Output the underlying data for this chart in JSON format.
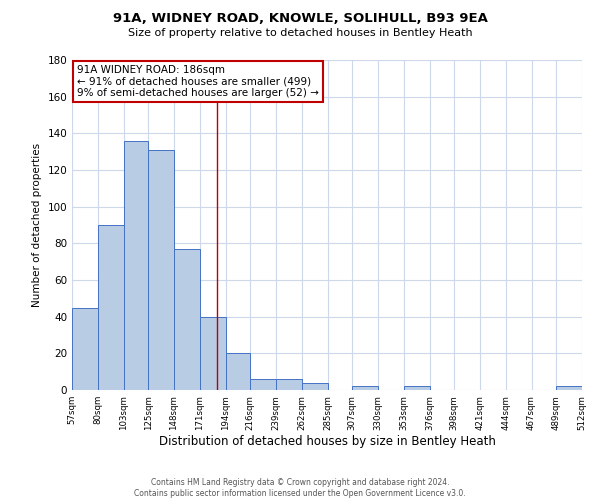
{
  "title": "91A, WIDNEY ROAD, KNOWLE, SOLIHULL, B93 9EA",
  "subtitle": "Size of property relative to detached houses in Bentley Heath",
  "xlabel": "Distribution of detached houses by size in Bentley Heath",
  "ylabel": "Number of detached properties",
  "bar_edges": [
    57,
    80,
    103,
    125,
    148,
    171,
    194,
    216,
    239,
    262,
    285,
    307,
    330,
    353,
    376,
    398,
    421,
    444,
    467,
    489,
    512
  ],
  "bar_heights": [
    45,
    90,
    136,
    131,
    77,
    40,
    20,
    6,
    6,
    4,
    0,
    2,
    0,
    2,
    0,
    0,
    0,
    0,
    0,
    2
  ],
  "bar_color": "#b8cce4",
  "bar_edge_color": "#4472c4",
  "property_line_x": 186,
  "ylim": [
    0,
    180
  ],
  "yticks": [
    0,
    20,
    40,
    60,
    80,
    100,
    120,
    140,
    160,
    180
  ],
  "tick_labels": [
    "57sqm",
    "80sqm",
    "103sqm",
    "125sqm",
    "148sqm",
    "171sqm",
    "194sqm",
    "216sqm",
    "239sqm",
    "262sqm",
    "285sqm",
    "307sqm",
    "330sqm",
    "353sqm",
    "376sqm",
    "398sqm",
    "421sqm",
    "444sqm",
    "467sqm",
    "489sqm",
    "512sqm"
  ],
  "annotation_title": "91A WIDNEY ROAD: 186sqm",
  "annotation_line1": "← 91% of detached houses are smaller (499)",
  "annotation_line2": "9% of semi-detached houses are larger (52) →",
  "annotation_box_color": "#ffffff",
  "annotation_box_edge_color": "#c00000",
  "footer_line1": "Contains HM Land Registry data © Crown copyright and database right 2024.",
  "footer_line2": "Contains public sector information licensed under the Open Government Licence v3.0.",
  "bg_color": "#ffffff",
  "grid_color": "#cdd8ea"
}
